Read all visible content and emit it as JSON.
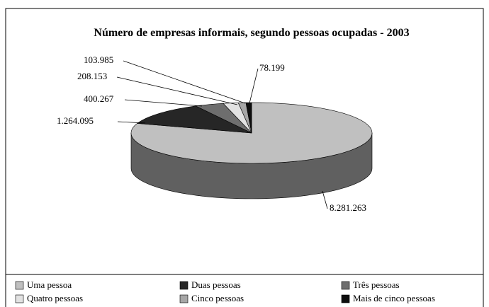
{
  "chart_data": {
    "type": "pie",
    "title": "Número de empresas informais, segundo pessoas ocupadas - 2003",
    "categories": [
      "Uma pessoa",
      "Duas pessoas",
      "Três pessoas",
      "Quatro pessoas",
      "Cinco pessoas",
      "Mais de cinco pessoas"
    ],
    "values": [
      8281263,
      1264095,
      400267,
      208153,
      103985,
      78199
    ],
    "value_labels": [
      "8.281.263",
      "1.264.095",
      "400.267",
      "208.153",
      "103.985",
      "78.199"
    ],
    "colors": [
      "#c0c0c0",
      "#262626",
      "#6e6e6e",
      "#e2e2e2",
      "#a6a6a6",
      "#0e0e0e"
    ],
    "legend": "bottom"
  }
}
